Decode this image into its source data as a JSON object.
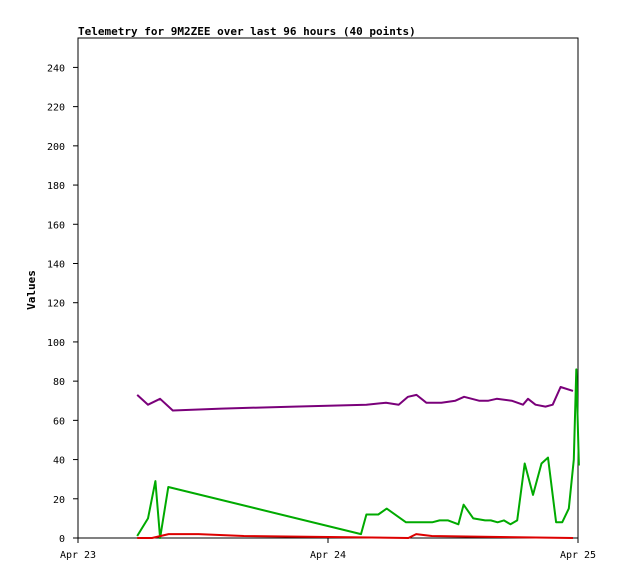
{
  "chart_data": {
    "type": "line",
    "title": "Telemetry for 9M2ZEE over last 96 hours (40 points)",
    "xlabel": "",
    "ylabel": "Values",
    "xlim": [
      "Apr 23",
      "Apr 25"
    ],
    "ylim": [
      0,
      255
    ],
    "x_ticks": [
      "Apr 23",
      "Apr 24",
      "Apr 25"
    ],
    "y_ticks": [
      0,
      20,
      40,
      60,
      80,
      100,
      120,
      140,
      160,
      180,
      200,
      220,
      240
    ],
    "grid": false,
    "legend": "none",
    "series": [
      {
        "color": "#7a007a",
        "x": [
          "Apr 23 05:41",
          "Apr 23 06:43",
          "Apr 23 07:53",
          "Apr 23 09:06",
          "Apr 23 13:47",
          "Apr 23 20:46",
          "Apr 24 03:41",
          "Apr 24 05:34",
          "Apr 24 06:47",
          "Apr 24 07:41",
          "Apr 24 08:30",
          "Apr 24 09:26",
          "Apr 24 10:53",
          "Apr 24 12:14",
          "Apr 24 13:04",
          "Apr 24 14:30",
          "Apr 24 15:24",
          "Apr 24 16:12",
          "Apr 24 17:38",
          "Apr 24 18:43",
          "Apr 24 19:12",
          "Apr 24 19:55",
          "Apr 24 20:53",
          "Apr 24 21:34",
          "Apr 24 22:20",
          "Apr 24 23:31"
        ],
        "values": [
          73,
          68,
          71,
          65,
          66,
          67,
          68,
          69,
          68,
          72,
          73,
          69,
          69,
          70,
          72,
          70,
          70,
          71,
          70,
          68,
          71,
          68,
          67,
          68,
          77,
          75
        ]
      },
      {
        "color": "#00aa00",
        "x": [
          "Apr 23 05:41",
          "Apr 23 06:43",
          "Apr 23 07:26",
          "Apr 23 07:53",
          "Apr 23 08:40",
          "Apr 24 03:10",
          "Apr 24 03:41",
          "Apr 24 04:50",
          "Apr 24 05:38",
          "Apr 24 07:29",
          "Apr 24 09:05",
          "Apr 24 10:00",
          "Apr 24 10:43",
          "Apr 24 11:32",
          "Apr 24 12:31",
          "Apr 24 13:01",
          "Apr 24 13:57",
          "Apr 24 15:05",
          "Apr 24 15:38",
          "Apr 24 16:17",
          "Apr 24 16:53",
          "Apr 24 17:31",
          "Apr 24 18:10",
          "Apr 24 18:53",
          "Apr 24 19:41",
          "Apr 24 20:30",
          "Apr 24 21:07",
          "Apr 24 21:54",
          "Apr 24 22:29",
          "Apr 24 23:07",
          "Apr 24 23:36",
          "Apr 24 23:50",
          "Apr 25 00:05"
        ],
        "values": [
          1,
          10,
          29,
          0,
          26,
          2,
          12,
          12,
          15,
          8,
          8,
          8,
          9,
          9,
          7,
          17,
          10,
          9,
          9,
          8,
          9,
          7,
          9,
          38,
          22,
          38,
          41,
          8,
          8,
          15,
          40,
          86,
          37
        ]
      },
      {
        "color": "#dd0000",
        "x": [
          "Apr 23 05:41",
          "Apr 23 07:06",
          "Apr 23 08:42",
          "Apr 23 11:34",
          "Apr 23 15:55",
          "Apr 24 07:43",
          "Apr 24 08:28",
          "Apr 24 09:58",
          "Apr 24 23:31"
        ],
        "values": [
          0,
          0,
          2,
          2,
          1,
          0,
          2,
          1,
          0
        ]
      }
    ]
  }
}
